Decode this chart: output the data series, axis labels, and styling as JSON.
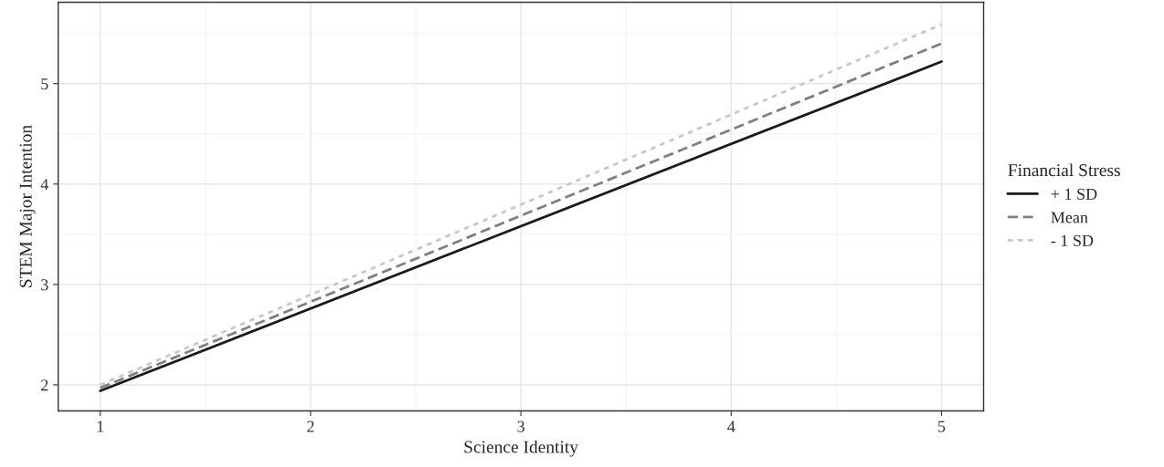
{
  "chart_data": {
    "type": "line",
    "xlabel": "Science Identity",
    "ylabel": "STEM Major Intention",
    "legend_title": "Financial Stress",
    "legend": "right",
    "x": [
      1,
      5
    ],
    "series": [
      {
        "name": "+ 1 SD",
        "color": "#1a1a1a",
        "line_style": "solid",
        "values": [
          1.94,
          5.22
        ]
      },
      {
        "name": "Mean",
        "color": "#7f7f7f",
        "line_style": "dashed",
        "values": [
          1.97,
          5.4
        ]
      },
      {
        "name": "- 1 SD",
        "color": "#c8c8c8",
        "line_style": "dotted",
        "values": [
          2.0,
          5.59
        ]
      }
    ],
    "xlim": [
      0.8,
      5.2
    ],
    "ylim": [
      1.74,
      5.81
    ],
    "xticks": [
      1,
      {
        "value": 1.5,
        "label": null
      },
      2,
      {
        "value": 2.5,
        "label": null
      },
      3,
      {
        "value": 3.5,
        "label": null
      },
      4,
      {
        "value": 4.5,
        "label": null
      },
      5
    ],
    "yticks": [
      2,
      {
        "value": 2.5,
        "label": null
      },
      3,
      {
        "value": 3.5,
        "label": null
      },
      4,
      {
        "value": 4.5,
        "label": null
      },
      5,
      {
        "value": 5.5,
        "label": null
      }
    ],
    "grid": true
  }
}
